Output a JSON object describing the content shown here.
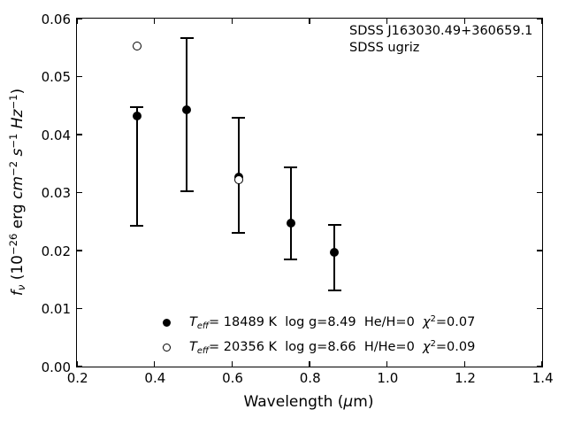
{
  "chart_data": {
    "type": "scatter",
    "title": "",
    "xlabel": "Wavelength (μm)",
    "ylabel": "f_ν (10^−26 erg cm^−2 s^−1 Hz^−1)",
    "xlim": [
      0.2,
      1.4
    ],
    "ylim": [
      0.0,
      0.06
    ],
    "grid": false,
    "tick_direction": "in, all four sides",
    "x_ticks": [
      0.2,
      0.4,
      0.6,
      0.8,
      1.0,
      1.2,
      1.4
    ],
    "x_tick_labels": [
      "0.2",
      "0.4",
      "0.6",
      "0.8",
      "1.0",
      "1.2",
      "1.4"
    ],
    "y_ticks": [
      0.0,
      0.01,
      0.02,
      0.03,
      0.04,
      0.05,
      0.06
    ],
    "y_tick_labels": [
      "0.00",
      "0.01",
      "0.02",
      "0.03",
      "0.04",
      "0.05",
      "0.06"
    ],
    "annotations": [
      "SDSS J163030.49+360659.1",
      "SDSS ugriz"
    ],
    "legend_position": "lower center, no frame",
    "series": [
      {
        "name": "SDSS ugriz photometry with model Teff=18489 K (filled circles)",
        "marker": "filled-circle",
        "color": "#000000",
        "x": [
          0.355,
          0.483,
          0.617,
          0.751,
          0.864
        ],
        "y": [
          0.0432,
          0.0443,
          0.0327,
          0.0248,
          0.0197
        ],
        "y_err_upper": [
          0.0447,
          0.0566,
          0.0429,
          0.0344,
          0.0244
        ],
        "y_err_lower": [
          0.0242,
          0.0303,
          0.0231,
          0.0184,
          0.0131
        ]
      },
      {
        "name": "model Teff=20356 K (open circles)",
        "marker": "open-circle",
        "color": "#000000",
        "x": [
          0.355,
          0.617
        ],
        "y": [
          0.0553,
          0.0322
        ]
      }
    ],
    "legend": [
      {
        "marker": "filled-circle",
        "t": "T",
        "t_sub": "eff",
        "mid": "= 18489 K  log g=8.49  He/H=0  ",
        "chi": "χ",
        "chi_sup": "2",
        "end": "=0.07"
      },
      {
        "marker": "open-circle",
        "t": "T",
        "t_sub": "eff",
        "mid": "= 20356 K  log g=8.66  H/He=0  ",
        "chi": "χ",
        "chi_sup": "2",
        "end": "=0.09"
      }
    ]
  },
  "labels": {
    "xlabel": {
      "pre": "Wavelength (",
      "mu": "μ",
      "post": "m)"
    },
    "ylabel": {
      "f": "f",
      "nu": "ν",
      "p1": " (10",
      "e1": "−26",
      "p2": " erg ",
      "cm": "cm",
      "e2": "−2",
      "p3": " ",
      "s": "s",
      "e3": "−1",
      "p4": " ",
      "hz": "Hz",
      "e4": "−1",
      "p5": ")"
    }
  }
}
